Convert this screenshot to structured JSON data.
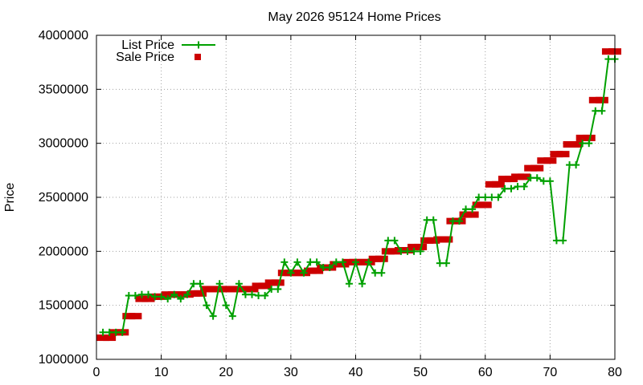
{
  "chart_data": {
    "type": "line",
    "title": "May 2026 95124 Home Prices",
    "xlabel": "",
    "ylabel": "Price",
    "xlim": [
      0,
      80
    ],
    "ylim": [
      1000000,
      4000000
    ],
    "x_ticks": [
      "0",
      "10",
      "20",
      "30",
      "40",
      "50",
      "60",
      "70",
      "80"
    ],
    "y_ticks": [
      "1000000",
      "1500000",
      "2000000",
      "2500000",
      "3000000",
      "3500000",
      "4000000"
    ],
    "grid": true,
    "legend_position": "top-left",
    "colors": {
      "list": "#00a000",
      "sale": "#cc0000"
    },
    "series": [
      {
        "name": "List Price",
        "style": "line-with-plus-markers",
        "x": [
          1,
          2,
          3,
          4,
          5,
          6,
          7,
          8,
          9,
          10,
          11,
          12,
          13,
          14,
          15,
          16,
          17,
          18,
          19,
          20,
          21,
          22,
          23,
          24,
          25,
          26,
          27,
          28,
          29,
          30,
          31,
          32,
          33,
          34,
          35,
          36,
          37,
          38,
          39,
          40,
          41,
          42,
          43,
          44,
          45,
          46,
          47,
          48,
          49,
          50,
          51,
          52,
          53,
          54,
          55,
          56,
          57,
          58,
          59,
          60,
          61,
          62,
          63,
          64,
          65,
          66,
          67,
          68,
          69,
          70,
          71,
          72,
          73,
          74,
          75,
          76,
          77,
          78,
          79,
          80
        ],
        "values": [
          1250000,
          1250000,
          1250000,
          1250000,
          1590000,
          1590000,
          1600000,
          1600000,
          1580000,
          1580000,
          1560000,
          1600000,
          1560000,
          1600000,
          1700000,
          1700000,
          1500000,
          1400000,
          1700000,
          1500000,
          1400000,
          1700000,
          1600000,
          1600000,
          1590000,
          1590000,
          1650000,
          1650000,
          1900000,
          1800000,
          1900000,
          1800000,
          1900000,
          1900000,
          1850000,
          1850000,
          1900000,
          1900000,
          1700000,
          1900000,
          1700000,
          1900000,
          1800000,
          1800000,
          2100000,
          2100000,
          2000000,
          2000000,
          2000000,
          2000000,
          2290000,
          2290000,
          1890000,
          1890000,
          2280000,
          2280000,
          2390000,
          2390000,
          2500000,
          2500000,
          2500000,
          2500000,
          2580000,
          2580000,
          2600000,
          2600000,
          2680000,
          2680000,
          2650000,
          2650000,
          2100000,
          2100000,
          2800000,
          2800000,
          3000000,
          3000000,
          3300000,
          3300000,
          3780000,
          3780000
        ]
      },
      {
        "name": "Sale Price",
        "style": "square-markers",
        "x": [
          1,
          2,
          3,
          4,
          5,
          6,
          7,
          8,
          9,
          10,
          11,
          12,
          13,
          14,
          15,
          16,
          17,
          18,
          19,
          20,
          21,
          22,
          23,
          24,
          25,
          26,
          27,
          28,
          29,
          30,
          31,
          32,
          33,
          34,
          35,
          36,
          37,
          38,
          39,
          40,
          41,
          42,
          43,
          44,
          45,
          46,
          47,
          48,
          49,
          50,
          51,
          52,
          53,
          54,
          55,
          56,
          57,
          58,
          59,
          60,
          61,
          62,
          63,
          64,
          65,
          66,
          67,
          68,
          69,
          70,
          71,
          72,
          73,
          74,
          75,
          76,
          77,
          78,
          79,
          80
        ],
        "values": [
          1200000,
          1200000,
          1250000,
          1250000,
          1400000,
          1400000,
          1560000,
          1560000,
          1580000,
          1580000,
          1600000,
          1600000,
          1600000,
          1600000,
          1610000,
          1610000,
          1650000,
          1650000,
          1650000,
          1650000,
          1650000,
          1650000,
          1650000,
          1650000,
          1680000,
          1680000,
          1710000,
          1710000,
          1800000,
          1800000,
          1800000,
          1800000,
          1820000,
          1820000,
          1850000,
          1850000,
          1880000,
          1880000,
          1900000,
          1900000,
          1900000,
          1900000,
          1930000,
          1930000,
          2000000,
          2000000,
          2010000,
          2010000,
          2040000,
          2040000,
          2100000,
          2100000,
          2110000,
          2110000,
          2280000,
          2280000,
          2340000,
          2340000,
          2430000,
          2430000,
          2620000,
          2620000,
          2670000,
          2670000,
          2690000,
          2690000,
          2770000,
          2770000,
          2840000,
          2840000,
          2900000,
          2900000,
          2990000,
          2990000,
          3050000,
          3050000,
          3400000,
          3400000,
          3850000,
          3850000
        ]
      }
    ]
  }
}
